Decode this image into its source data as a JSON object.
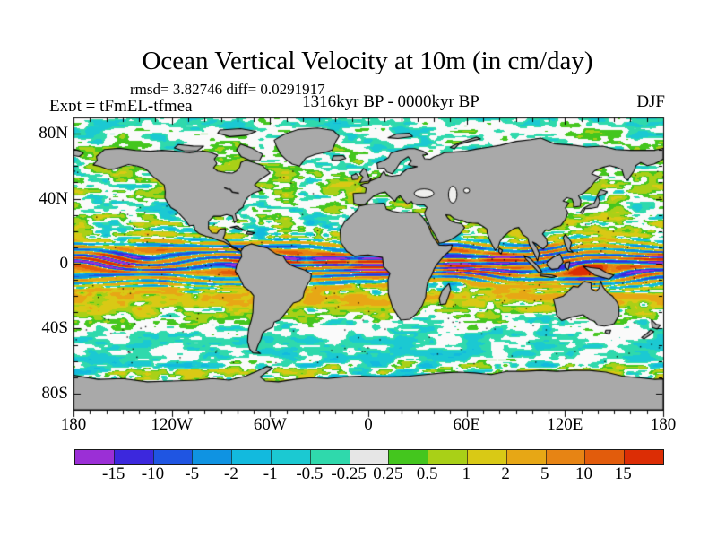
{
  "header": {
    "title": "Ocean Vertical Velocity at 10m (in cm/day)",
    "stats": "rmsd= 3.82746 diff= 0.0291917",
    "period": "1316kyr BP - 0000kyr BP",
    "experiment": "Expt = tFmEL-tfmea",
    "season": "DJF"
  },
  "chart_data": {
    "type": "heatmap",
    "title": "Ocean Vertical Velocity at 10m (in cm/day)",
    "stats": {
      "rmsd": 3.82746,
      "diff": 0.0291917
    },
    "period": "1316kyr BP - 0000kyr BP",
    "experiment": "tFmEL-tfmea",
    "season": "DJF",
    "projection": "equirectangular",
    "lon_range": [
      -180,
      180
    ],
    "lat_range": [
      -90,
      90
    ],
    "minor_tick_step_deg": 10,
    "x_ticks": [
      {
        "v": -180,
        "t": "180"
      },
      {
        "v": -120,
        "t": "120W"
      },
      {
        "v": -60,
        "t": "60W"
      },
      {
        "v": 0,
        "t": "0"
      },
      {
        "v": 60,
        "t": "60E"
      },
      {
        "v": 120,
        "t": "120E"
      },
      {
        "v": 180,
        "t": "180"
      }
    ],
    "y_ticks": [
      {
        "v": 80,
        "t": "80N"
      },
      {
        "v": 40,
        "t": "40N"
      },
      {
        "v": 0,
        "t": "0"
      },
      {
        "v": -40,
        "t": "40S"
      },
      {
        "v": -80,
        "t": "80S"
      }
    ],
    "colorbar": {
      "units": "cm/day",
      "levels": [
        -15,
        -10,
        -5,
        -2,
        -1,
        -0.5,
        -0.25,
        0.25,
        0.5,
        1,
        2,
        5,
        10,
        15
      ],
      "tick_labels": [
        "-15",
        "-10",
        "-5",
        "-2",
        "-1",
        "-0.5",
        "-0.25",
        "0.25",
        "0.5",
        "1",
        "2",
        "5",
        "10",
        "15"
      ],
      "colors": [
        "#9b2fd6",
        "#3c28dd",
        "#1f55e2",
        "#0f93e2",
        "#12bade",
        "#1bc9d2",
        "#2fd9ac",
        "#e6e6e6",
        "#44c61e",
        "#a9d017",
        "#d9c915",
        "#e7a715",
        "#e78414",
        "#e25c0c",
        "#dc2d05"
      ]
    },
    "land_color": "#a9a9a9",
    "coast_color": "#000000",
    "zero_band_map_color": "#fafafa",
    "field_bands": [
      {
        "lat": 90,
        "bias": -0.3,
        "amp": 0.8
      },
      {
        "lat": 75,
        "bias": -0.05,
        "amp": 0.8
      },
      {
        "lat": 60,
        "bias": 0.1,
        "amp": 1.1
      },
      {
        "lat": 48,
        "bias": 0.2,
        "amp": 1.4
      },
      {
        "lat": 35,
        "bias": 0.05,
        "amp": 1.1
      },
      {
        "lat": 25,
        "bias": 0.3,
        "amp": 1.8
      },
      {
        "lat": 15,
        "bias": 0.4,
        "amp": 2.6
      },
      {
        "lat": 8,
        "bias": 0.1,
        "amp": 2.4
      },
      {
        "lat": 0,
        "bias": 0.0,
        "amp": 2.0
      },
      {
        "lat": -8,
        "bias": 0.4,
        "amp": 2.4
      },
      {
        "lat": -15,
        "bias": 1.5,
        "amp": 2.8
      },
      {
        "lat": -21,
        "bias": 1.9,
        "amp": 2.6
      },
      {
        "lat": -28,
        "bias": 0.8,
        "amp": 1.6
      },
      {
        "lat": -35,
        "bias": 0.0,
        "amp": 0.9
      },
      {
        "lat": -42,
        "bias": -0.2,
        "amp": 0.7
      },
      {
        "lat": -50,
        "bias": -0.4,
        "amp": 0.6
      },
      {
        "lat": -58,
        "bias": -0.5,
        "amp": 0.7
      },
      {
        "lat": -64,
        "bias": 0.0,
        "amp": 1.8
      },
      {
        "lat": -69,
        "bias": 0.3,
        "amp": 2.2
      },
      {
        "lat": -90,
        "bias": 0.0,
        "amp": 1.0
      }
    ],
    "equator_band": {
      "amplitude": 19,
      "half_width_deg": 9.5
    }
  }
}
